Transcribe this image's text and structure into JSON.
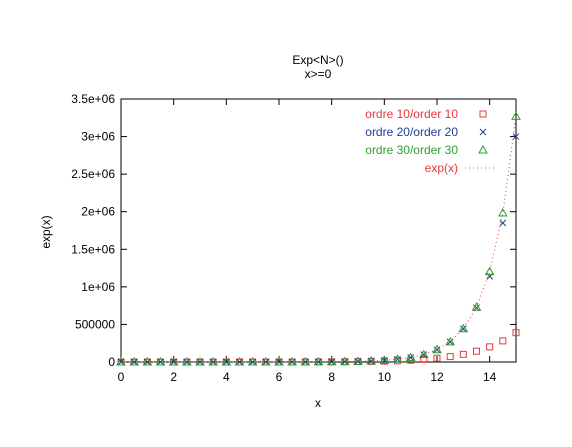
{
  "chart_data": {
    "type": "scatter",
    "title": "Exp<N>()",
    "subtitle": "x>=0",
    "xlabel": "x",
    "ylabel": "exp(x)",
    "xlim": [
      0,
      15
    ],
    "ylim": [
      0,
      3500000
    ],
    "xticks": [
      0,
      2,
      4,
      6,
      8,
      10,
      12,
      14
    ],
    "xtick_labels": [
      "0",
      "2",
      "4",
      "6",
      "8",
      "10",
      "12",
      "14"
    ],
    "yticks": [
      0,
      500000,
      1000000,
      1500000,
      2000000,
      2500000,
      3000000,
      3500000
    ],
    "ytick_labels": [
      "0",
      "500000",
      "1e+06",
      "1.5e+06",
      "2e+06",
      "2.5e+06",
      "3e+06",
      "3.5e+06"
    ],
    "grid": false,
    "legend_position": "top-right",
    "x": [
      0,
      0.5,
      1,
      1.5,
      2,
      2.5,
      3,
      3.5,
      4,
      4.5,
      5,
      5.5,
      6,
      6.5,
      7,
      7.5,
      8,
      8.5,
      9,
      9.5,
      10,
      10.5,
      11,
      11.5,
      12,
      12.5,
      13,
      13.5,
      14,
      14.5,
      15
    ],
    "series": [
      {
        "name": "ordre 10/order 10",
        "marker": "square",
        "color": "#e8383b",
        "values": [
          1,
          2,
          3,
          4,
          7,
          12,
          20,
          33,
          54,
          90,
          146,
          236,
          379,
          601,
          943,
          1463,
          2247,
          3418,
          5145,
          7676,
          11351,
          16660,
          24240,
          35040,
          50380,
          71870,
          101920,
          143700,
          201500,
          281000,
          390000
        ]
      },
      {
        "name": "ordre 20/order 20",
        "marker": "cross",
        "color": "#1f3e96",
        "values": [
          1,
          2,
          3,
          4,
          7,
          12,
          20,
          33,
          55,
          90,
          148,
          245,
          403,
          665,
          1097,
          1808,
          2981,
          4915,
          8103,
          13360,
          22026,
          36300,
          59860,
          98650,
          162600,
          267800,
          440500,
          722400,
          1140000,
          1850000,
          3000000
        ]
      },
      {
        "name": "ordre 30/order 30",
        "marker": "triangle",
        "color": "#2ca02c",
        "values": [
          1,
          2,
          3,
          4,
          7,
          12,
          20,
          33,
          55,
          90,
          148,
          245,
          403,
          665,
          1097,
          1808,
          2981,
          4915,
          8103,
          13360,
          22026,
          36316,
          59874,
          98716,
          162755,
          268337,
          442413,
          729416,
          1202604,
          1982759,
          3269017
        ]
      },
      {
        "name": "exp(x)",
        "marker": "dotted-line",
        "color": "#e8383b",
        "values": [
          1,
          2,
          3,
          4,
          7,
          12,
          20,
          33,
          55,
          90,
          148,
          245,
          403,
          665,
          1097,
          1808,
          2981,
          4915,
          8103,
          13360,
          22026,
          36316,
          59874,
          98716,
          162755,
          268337,
          442413,
          729416,
          1202604,
          1982759,
          3269017
        ]
      }
    ]
  }
}
